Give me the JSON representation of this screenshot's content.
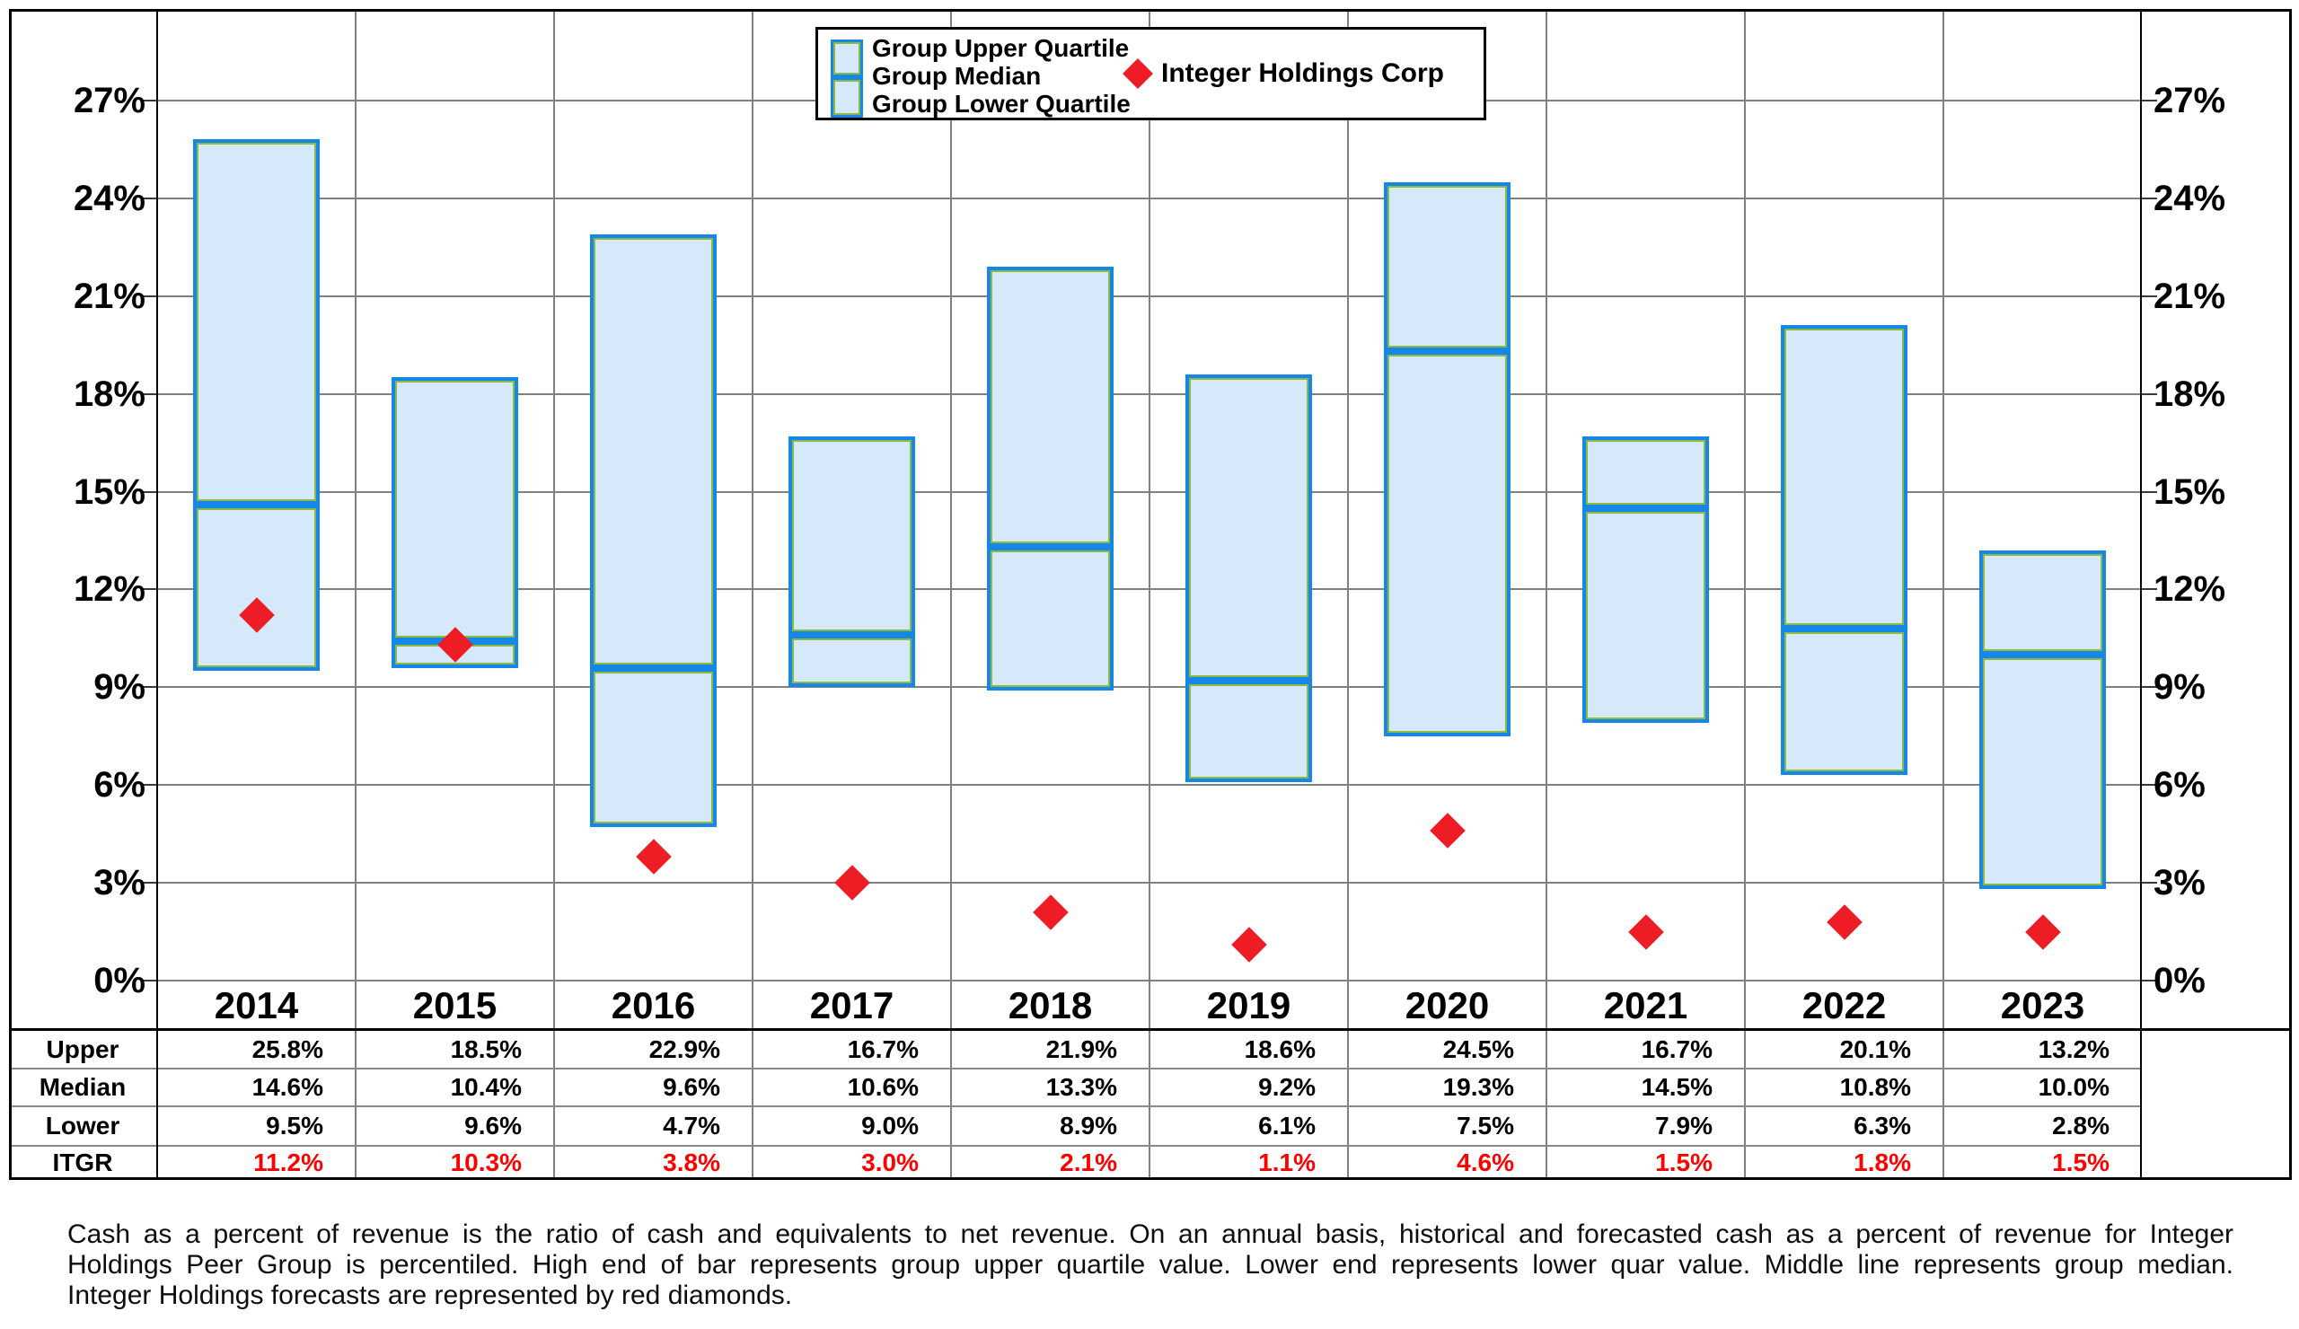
{
  "legend": {
    "upper_label": "Group Upper Quartile",
    "median_label": "Group Median",
    "lower_label": "Group Lower Quartile",
    "diamond_label": "Integer Holdings Corp"
  },
  "table": {
    "row_headers": [
      "Upper",
      "Median",
      "Lower",
      "ITGR"
    ]
  },
  "footnote": {
    "lines": [
      "Cash as a percent of revenue is the ratio of cash and equivalents to net revenue.  On an annual basis, historical and forecasted cash as a percent of revenue for Integer",
      "Holdings Peer Group is percentiled.  High end of bar represents group upper quartile value.  Lower end represents lower quar value.  Middle line represents group median.",
      "Integer Holdings forecasts are represented by red diamonds."
    ]
  },
  "colors": {
    "bar_fill": "#D6E9FA",
    "bar_border": "#1587E8",
    "bar_inner_line": "#8CBA3E",
    "diamond_red": "#EE1C25",
    "itgr_text_red": "#FF0000",
    "gridline_gray": "#808080",
    "table_line_gray": "#888888",
    "frame_black": "#000000"
  },
  "chart_data": {
    "type": "bar",
    "subtype": "floating-quartile-range-with-scatter-overlay",
    "categories": [
      "2014",
      "2015",
      "2016",
      "2017",
      "2018",
      "2019",
      "2020",
      "2021",
      "2022",
      "2023"
    ],
    "series": [
      {
        "name": "Group Upper Quartile",
        "role": "bar-top",
        "values": [
          25.8,
          18.5,
          22.9,
          16.7,
          21.9,
          18.6,
          24.5,
          16.7,
          20.1,
          13.2
        ]
      },
      {
        "name": "Group Median",
        "role": "bar-middle-line",
        "values": [
          14.6,
          10.4,
          9.6,
          10.6,
          13.3,
          9.2,
          19.3,
          14.5,
          10.8,
          10.0
        ]
      },
      {
        "name": "Group Lower Quartile",
        "role": "bar-bottom",
        "values": [
          9.5,
          9.6,
          4.7,
          9.0,
          8.9,
          6.1,
          7.5,
          7.9,
          6.3,
          2.8
        ]
      },
      {
        "name": "Integer Holdings Corp",
        "role": "scatter-diamond",
        "values": [
          11.2,
          10.3,
          3.8,
          3.0,
          2.1,
          1.1,
          4.6,
          1.5,
          1.8,
          1.5
        ]
      }
    ],
    "y_ticks": [
      0,
      3,
      6,
      9,
      12,
      15,
      18,
      21,
      24,
      27
    ],
    "y_tick_suffix": "%",
    "ylim": [
      0,
      29.8
    ],
    "value_suffix": "%",
    "grid": true,
    "dual_y_axis": true,
    "legend_position": "top-center",
    "title": "",
    "xlabel": "",
    "ylabel": ""
  }
}
